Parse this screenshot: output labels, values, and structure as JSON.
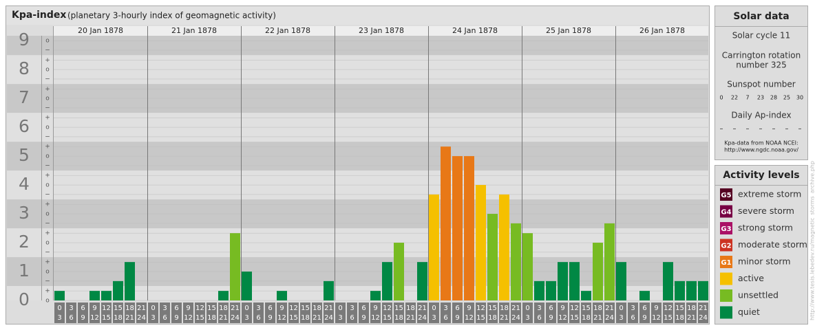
{
  "chart_data": {
    "type": "bar",
    "title": "Kpa-index",
    "subtitle": "(planetary 3-hourly index of geomagnetic activity)",
    "days": [
      "20 Jan 1878",
      "21 Jan 1878",
      "22 Jan 1878",
      "23 Jan 1878",
      "24 Jan 1878",
      "25 Jan 1878",
      "26 Jan 1878"
    ],
    "slots": [
      [
        "0",
        "3"
      ],
      [
        "3",
        "6"
      ],
      [
        "6",
        "9"
      ],
      [
        "9",
        "12"
      ],
      [
        "12",
        "15"
      ],
      [
        "15",
        "18"
      ],
      [
        "18",
        "21"
      ],
      [
        "21",
        "24"
      ]
    ],
    "values": [
      0.33,
      0,
      0,
      0.33,
      0.33,
      0.67,
      1.33,
      0,
      0,
      0,
      0,
      0,
      0,
      0,
      0.33,
      2.33,
      1,
      0,
      0,
      0.33,
      0,
      0,
      0,
      0.67,
      0,
      0,
      0,
      0.33,
      1.33,
      2,
      0,
      1.33,
      3.67,
      5.33,
      5,
      5,
      4,
      3,
      3.67,
      2.67,
      2.33,
      0.67,
      0.67,
      1.33,
      1.33,
      0.33,
      2,
      2.67,
      1.33,
      0,
      0.33,
      0,
      1.33,
      0.67,
      0.67,
      0.67
    ],
    "colors": [
      "#008844",
      "#008844",
      "#008844",
      "#008844",
      "#008844",
      "#008844",
      "#008844",
      "#008844",
      "#008844",
      "#008844",
      "#008844",
      "#008844",
      "#008844",
      "#008844",
      "#008844",
      "#77bb22",
      "#008844",
      "#008844",
      "#008844",
      "#008844",
      "#008844",
      "#008844",
      "#008844",
      "#008844",
      "#008844",
      "#008844",
      "#008844",
      "#008844",
      "#008844",
      "#77bb22",
      "#008844",
      "#008844",
      "#f5c000",
      "#e87817",
      "#e87817",
      "#e87817",
      "#f5c000",
      "#77bb22",
      "#f5c000",
      "#77bb22",
      "#77bb22",
      "#008844",
      "#008844",
      "#008844",
      "#008844",
      "#008844",
      "#77bb22",
      "#77bb22",
      "#008844",
      "#008844",
      "#008844",
      "#008844",
      "#008844",
      "#008844",
      "#008844",
      "#008844"
    ],
    "ylim": [
      0,
      9.17
    ],
    "yticks": [
      0,
      1,
      2,
      3,
      4,
      5,
      6,
      7,
      8,
      9
    ],
    "minor_ticks": [
      {
        "value": 0,
        "label": "o"
      },
      {
        "value": 0.33,
        "label": "+"
      },
      {
        "value": 0.67,
        "label": "−"
      },
      {
        "value": 1,
        "label": "o"
      },
      {
        "value": 1.33,
        "label": "+"
      },
      {
        "value": 1.67,
        "label": "−"
      },
      {
        "value": 2,
        "label": "o"
      },
      {
        "value": 2.33,
        "label": "+"
      },
      {
        "value": 2.67,
        "label": "−"
      },
      {
        "value": 3,
        "label": "o"
      },
      {
        "value": 3.33,
        "label": "+"
      },
      {
        "value": 3.67,
        "label": "−"
      },
      {
        "value": 4,
        "label": "o"
      },
      {
        "value": 4.33,
        "label": "+"
      },
      {
        "value": 4.67,
        "label": "−"
      },
      {
        "value": 5,
        "label": "o"
      },
      {
        "value": 5.33,
        "label": "+"
      },
      {
        "value": 5.67,
        "label": "−"
      },
      {
        "value": 6,
        "label": "o"
      },
      {
        "value": 6.33,
        "label": "+"
      },
      {
        "value": 6.67,
        "label": "−"
      },
      {
        "value": 7,
        "label": "o"
      },
      {
        "value": 7.33,
        "label": "+"
      },
      {
        "value": 7.67,
        "label": "−"
      },
      {
        "value": 8,
        "label": "o"
      },
      {
        "value": 8.33,
        "label": "+"
      },
      {
        "value": 8.67,
        "label": "−"
      },
      {
        "value": 9,
        "label": "o"
      }
    ],
    "solar": {
      "title": "Solar data",
      "cycle": "Solar cycle 11",
      "rotation": [
        "Carrington rotation",
        "number 325"
      ],
      "sunspot_label": "Sunspot number",
      "sunspot": [
        "0",
        "22",
        "7",
        "23",
        "28",
        "25",
        "30"
      ],
      "ap_label": "Daily Ap-index",
      "ap": [
        "–",
        "–",
        "–",
        "–",
        "–",
        "–",
        "–"
      ],
      "source": [
        "Kpa-data from NOAA NCEI:",
        "http://www.ngdc.noaa.gov/"
      ]
    },
    "legend": {
      "title": "Activity levels",
      "items": [
        {
          "code": "G5",
          "name": "extreme storm",
          "color": "#550022"
        },
        {
          "code": "G4",
          "name": "severe storm",
          "color": "#770044"
        },
        {
          "code": "G3",
          "name": "strong storm",
          "color": "#aa1166"
        },
        {
          "code": "G2",
          "name": "moderate storm",
          "color": "#cc3322"
        },
        {
          "code": "G1",
          "name": "minor storm",
          "color": "#e87817"
        },
        {
          "name": "active",
          "color": "#f5c000"
        },
        {
          "name": "unsettled",
          "color": "#77bb22"
        },
        {
          "name": "quiet",
          "color": "#008844"
        }
      ]
    },
    "watermark": "http://www.tesis.lebedev.ru/magnetic_storms_archive.php"
  }
}
